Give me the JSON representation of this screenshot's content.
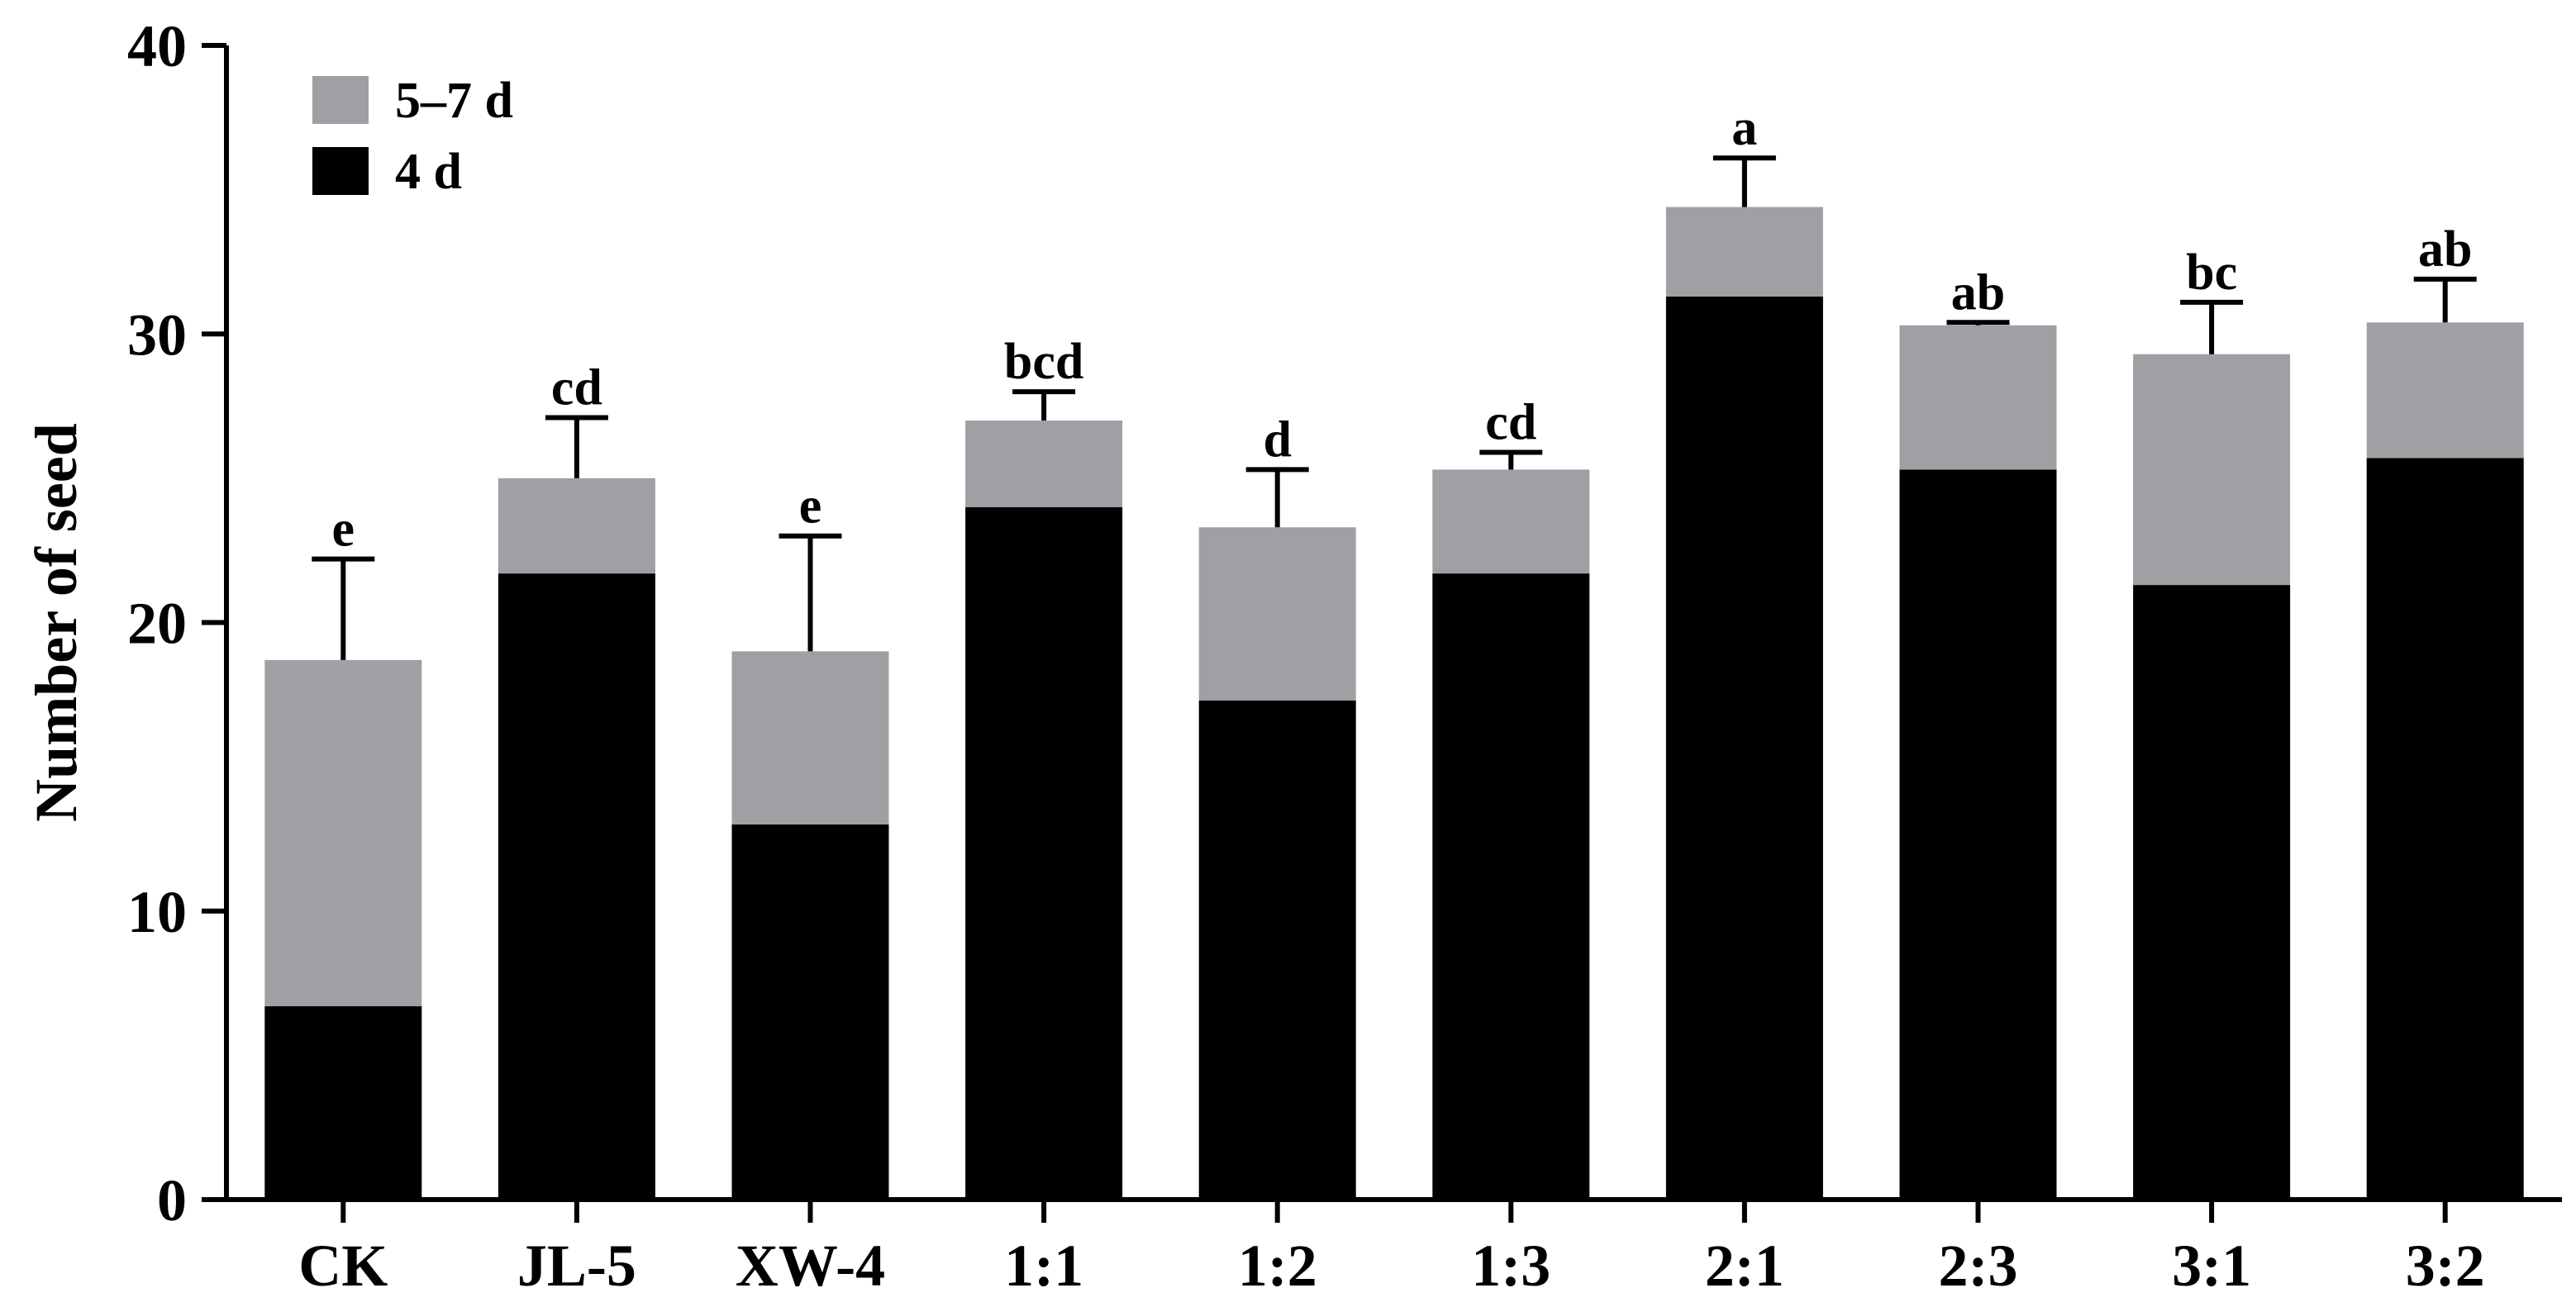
{
  "chart_data": {
    "type": "bar",
    "stacked": true,
    "title": "",
    "xlabel": "",
    "ylabel": "Number of seed",
    "ylim": [
      0,
      40
    ],
    "yticks": [
      0,
      10,
      20,
      30,
      40
    ],
    "grid": false,
    "legend_position": "top-left",
    "categories": [
      "CK",
      "JL-5",
      "XW-4",
      "1:1",
      "1:2",
      "1:3",
      "2:1",
      "2:3",
      "3:1",
      "3:2"
    ],
    "series": [
      {
        "name": "4 d",
        "color": "#000000",
        "values": [
          6.7,
          21.7,
          13.0,
          24.0,
          17.3,
          21.7,
          31.3,
          25.3,
          21.3,
          25.7
        ]
      },
      {
        "name": "5–7 d",
        "color": "#a0a0a4",
        "values": [
          12.0,
          3.3,
          6.0,
          3.0,
          6.0,
          3.6,
          3.1,
          5.0,
          8.0,
          4.7
        ]
      }
    ],
    "totals": [
      18.7,
      25.0,
      19.0,
      27.0,
      23.3,
      25.3,
      34.4,
      30.3,
      29.3,
      30.4
    ],
    "error_bars": [
      3.5,
      2.1,
      4.0,
      1.0,
      2.0,
      0.6,
      1.7,
      0.1,
      1.8,
      1.5
    ],
    "significance": [
      "e",
      "cd",
      "e",
      "bcd",
      "d",
      "cd",
      "a",
      "ab",
      "bc",
      "ab"
    ]
  }
}
